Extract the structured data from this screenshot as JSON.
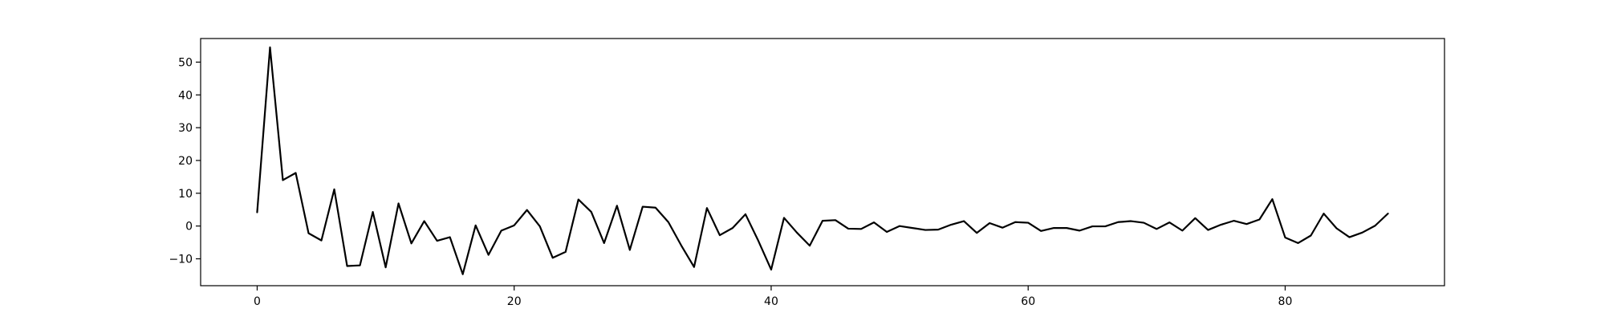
{
  "chart_data": {
    "type": "line",
    "title": "",
    "xlabel": "",
    "ylabel": "",
    "xlim": [
      -4.4,
      92.4
    ],
    "ylim": [
      -18.2,
      57.2
    ],
    "grid": false,
    "xticks": [
      0,
      20,
      40,
      60,
      80
    ],
    "yticks": [
      -10,
      0,
      10,
      20,
      30,
      40,
      50
    ],
    "series": [
      {
        "color": "#000000",
        "x": [
          0,
          1,
          2,
          3,
          4,
          5,
          6,
          7,
          8,
          9,
          10,
          11,
          12,
          13,
          14,
          15,
          16,
          17,
          18,
          19,
          20,
          21,
          22,
          23,
          24,
          25,
          26,
          27,
          28,
          29,
          30,
          31,
          32,
          33,
          34,
          35,
          36,
          37,
          38,
          39,
          40,
          41,
          42,
          43,
          44,
          45,
          46,
          47,
          48,
          49,
          50,
          51,
          52,
          53,
          54,
          55,
          56,
          57,
          58,
          59,
          60,
          61,
          62,
          63,
          64,
          65,
          66,
          67,
          68,
          69,
          70,
          71,
          72,
          73,
          74,
          75,
          76,
          77,
          78,
          79,
          80,
          81,
          82,
          83,
          84,
          85,
          86,
          87,
          88
        ],
        "values": [
          4.2,
          54.5,
          14.0,
          16.2,
          -2.2,
          -4.4,
          11.2,
          -12.2,
          -12.0,
          4.3,
          -12.6,
          6.9,
          -5.3,
          1.5,
          -4.5,
          -3.4,
          -14.7,
          0.2,
          -8.8,
          -1.4,
          0.2,
          4.9,
          -0.1,
          -9.7,
          -7.9,
          8.1,
          4.3,
          -5.2,
          6.2,
          -7.3,
          5.9,
          5.6,
          1.2,
          -5.9,
          -12.5,
          5.5,
          -2.8,
          -0.6,
          3.6,
          -4.5,
          -13.3,
          2.5,
          -2.0,
          -6.0,
          1.6,
          1.8,
          -0.8,
          -0.9,
          1.1,
          -1.8,
          0.0,
          -0.6,
          -1.2,
          -1.1,
          0.4,
          1.5,
          -2.1,
          0.9,
          -0.5,
          1.2,
          1.0,
          -1.5,
          -0.6,
          -0.6,
          -1.4,
          -0.1,
          -0.1,
          1.2,
          1.5,
          1.0,
          -0.9,
          1.1,
          -1.4,
          2.4,
          -1.2,
          0.4,
          1.6,
          0.6,
          2.0,
          8.2,
          -3.5,
          -5.2,
          -2.9,
          3.8,
          -0.7,
          -3.4,
          -2.0,
          0.1,
          3.8
        ]
      }
    ]
  }
}
